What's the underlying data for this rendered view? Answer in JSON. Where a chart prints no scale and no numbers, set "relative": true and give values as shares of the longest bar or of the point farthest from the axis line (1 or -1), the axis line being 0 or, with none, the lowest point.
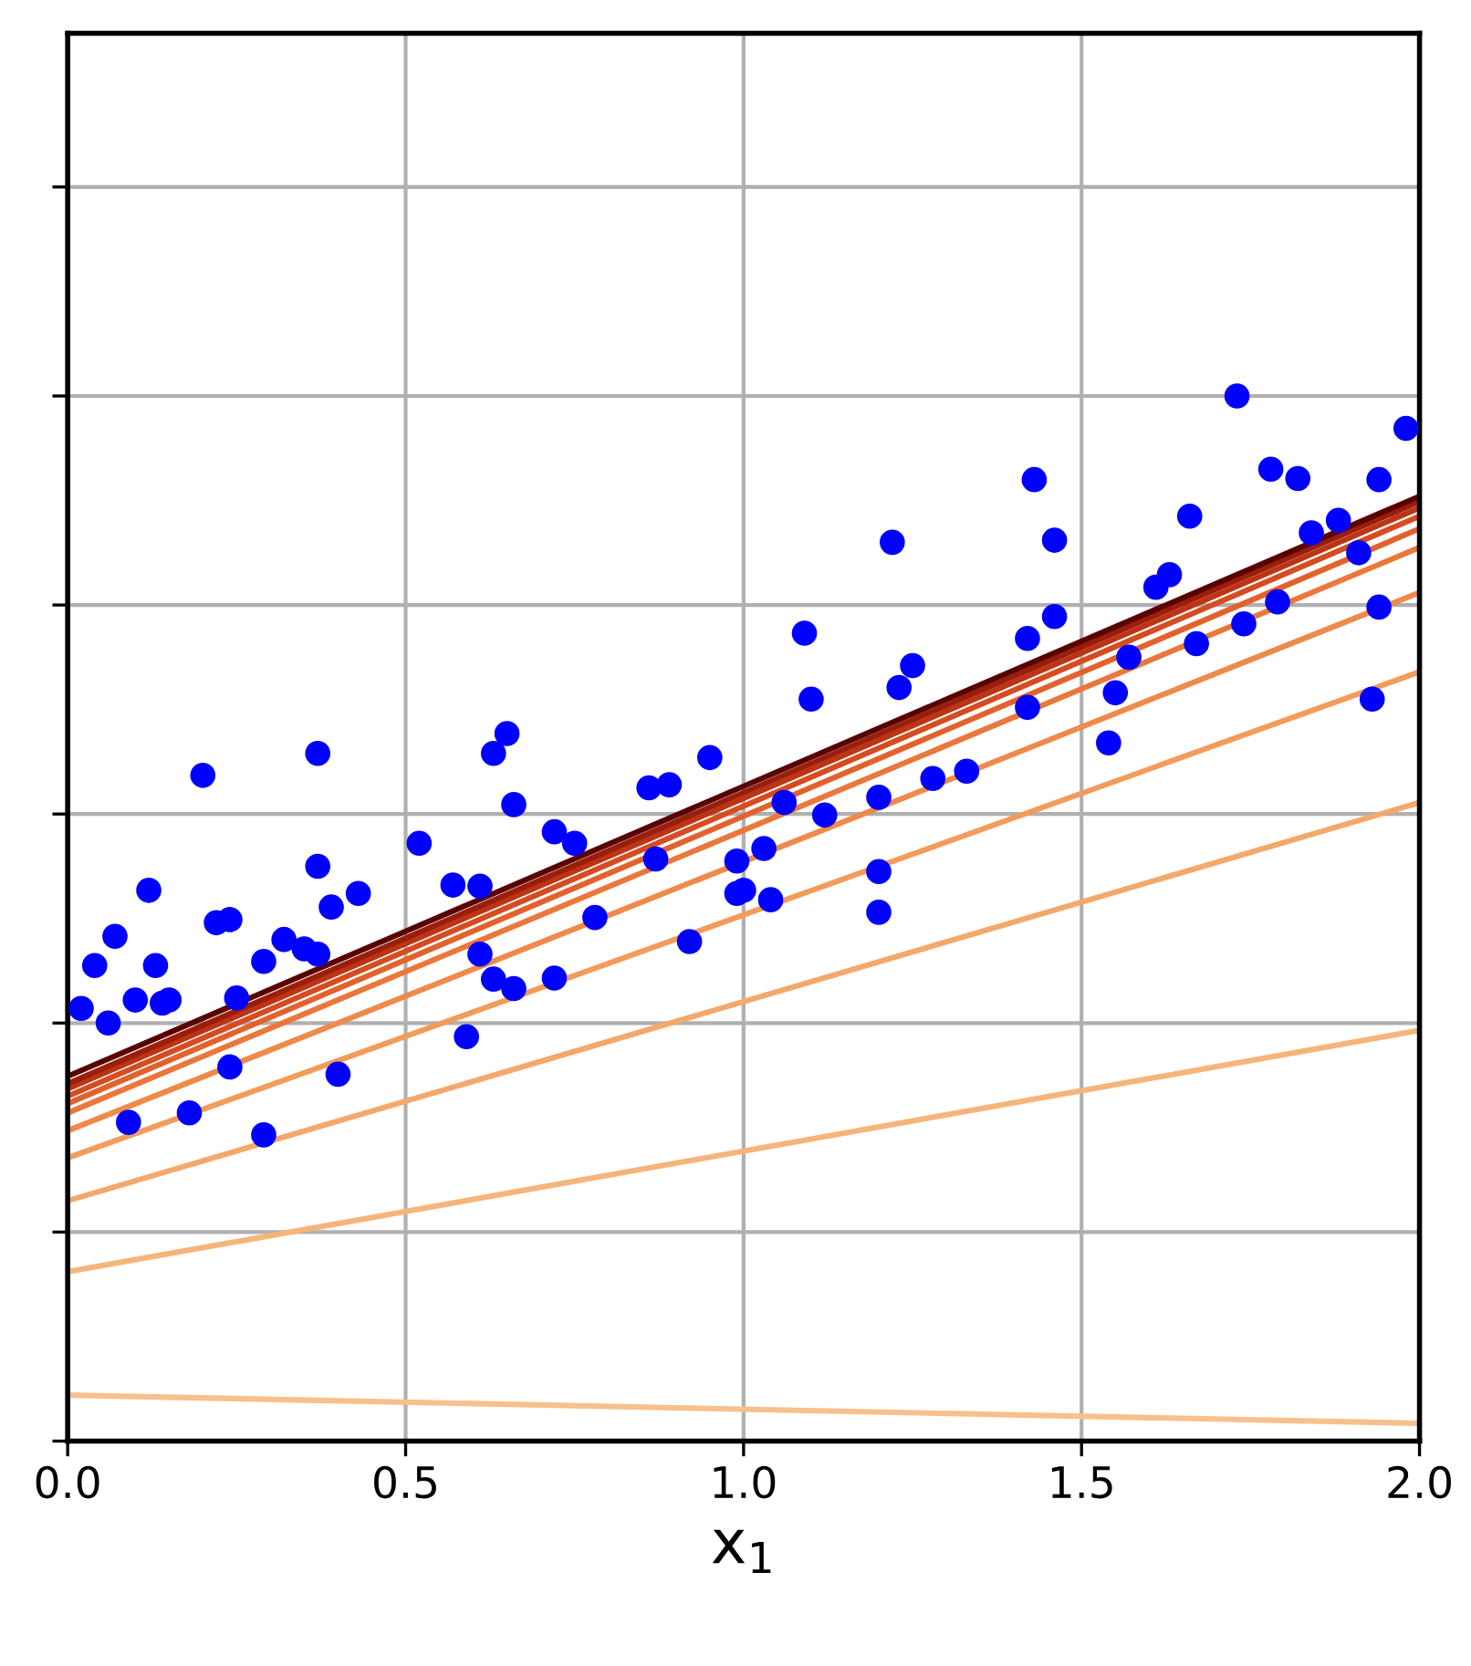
{
  "chart_data": {
    "type": "scatter",
    "relative": true,
    "xlabel": "x$_{1}$",
    "xlim": [
      0,
      2
    ],
    "xticks": [
      {
        "value": 0,
        "label": "0.0"
      },
      {
        "value": 0.5,
        "label": "0.5"
      },
      {
        "value": 1,
        "label": "1.0"
      },
      {
        "value": 1.5,
        "label": "1.5"
      },
      {
        "value": 2,
        "label": "2.0"
      }
    ],
    "grid": true,
    "tick_labels": "x",
    "series": [
      {
        "marker": "circle",
        "color": "#0000ff",
        "x": [
          0.02,
          0.06,
          0.04,
          0.07,
          0.12,
          0.1,
          0.13,
          0.15,
          0.14,
          0.2,
          0.22,
          0.24,
          0.25,
          0.24,
          0.09,
          0.18,
          0.29,
          0.29,
          0.32,
          0.35,
          0.37,
          0.37,
          0.37,
          0.39,
          0.43,
          0.4,
          0.52,
          0.57,
          0.61,
          0.63,
          0.65,
          0.66,
          0.61,
          0.63,
          0.66,
          0.72,
          0.59,
          0.72,
          0.75,
          0.78,
          0.87,
          0.86,
          0.89,
          0.95,
          0.92,
          0.99,
          0.99,
          1.09,
          1.1,
          1.22,
          1.25,
          1.23,
          1.43,
          1.46,
          1.46,
          1.42,
          1.42,
          1.55,
          1.54,
          1.57,
          1.61,
          1.63,
          1.66,
          1.67,
          1.74,
          1.79,
          1.73,
          1.78,
          1.82,
          1.94,
          1.98,
          1.91,
          1.88,
          1.84,
          1.94,
          1.93,
          1.0,
          1.03,
          1.04,
          1.12,
          1.2,
          1.2,
          1.2,
          1.28,
          1.33,
          1.06
        ],
        "values": [
          0.414,
          0.4,
          0.455,
          0.483,
          0.527,
          0.422,
          0.455,
          0.422,
          0.419,
          0.637,
          0.496,
          0.499,
          0.424,
          0.358,
          0.305,
          0.314,
          0.293,
          0.459,
          0.48,
          0.471,
          0.466,
          0.658,
          0.55,
          0.511,
          0.524,
          0.351,
          0.572,
          0.532,
          0.531,
          0.658,
          0.677,
          0.609,
          0.466,
          0.442,
          0.433,
          0.443,
          0.387,
          0.583,
          0.572,
          0.501,
          0.557,
          0.625,
          0.628,
          0.654,
          0.478,
          0.524,
          0.555,
          0.773,
          0.71,
          0.86,
          0.742,
          0.721,
          0.92,
          0.862,
          0.789,
          0.768,
          0.702,
          0.716,
          0.668,
          0.75,
          0.817,
          0.829,
          0.885,
          0.763,
          0.782,
          0.803,
          1.0,
          0.93,
          0.921,
          0.92,
          0.969,
          0.85,
          0.881,
          0.869,
          0.798,
          0.71,
          0.527,
          0.567,
          0.518,
          0.599,
          0.616,
          0.545,
          0.506,
          0.634,
          0.641,
          0.611
        ]
      },
      {
        "type": "line",
        "color": "#f7c08c",
        "x": [
          0,
          2
        ],
        "values": [
          0.044,
          0.017
        ]
      },
      {
        "type": "line",
        "color": "#f5b57a",
        "x": [
          0,
          2
        ],
        "values": [
          0.162,
          0.393
        ]
      },
      {
        "type": "line",
        "color": "#f3a96b",
        "x": [
          0,
          2
        ],
        "values": [
          0.23,
          0.611
        ]
      },
      {
        "type": "line",
        "color": "#f29c5c",
        "x": [
          0,
          2
        ],
        "values": [
          0.271,
          0.736
        ]
      },
      {
        "type": "line",
        "color": "#ef8a4a",
        "x": [
          0,
          2
        ],
        "values": [
          0.297,
          0.812
        ]
      },
      {
        "type": "line",
        "color": "#ea773b",
        "x": [
          0,
          2
        ],
        "values": [
          0.314,
          0.855
        ]
      },
      {
        "type": "line",
        "color": "#e2622d",
        "x": [
          0,
          2
        ],
        "values": [
          0.323,
          0.873
        ]
      },
      {
        "type": "line",
        "color": "#d44c20",
        "x": [
          0,
          2
        ],
        "values": [
          0.33,
          0.885
        ]
      },
      {
        "type": "line",
        "color": "#bd3414",
        "x": [
          0,
          2
        ],
        "values": [
          0.337,
          0.893
        ]
      },
      {
        "type": "line",
        "color": "#9a1e0a",
        "x": [
          0,
          2
        ],
        "values": [
          0.342,
          0.899
        ]
      },
      {
        "type": "line",
        "color": "#5a0000",
        "x": [
          0,
          2
        ],
        "values": [
          0.349,
          0.904
        ]
      }
    ]
  }
}
